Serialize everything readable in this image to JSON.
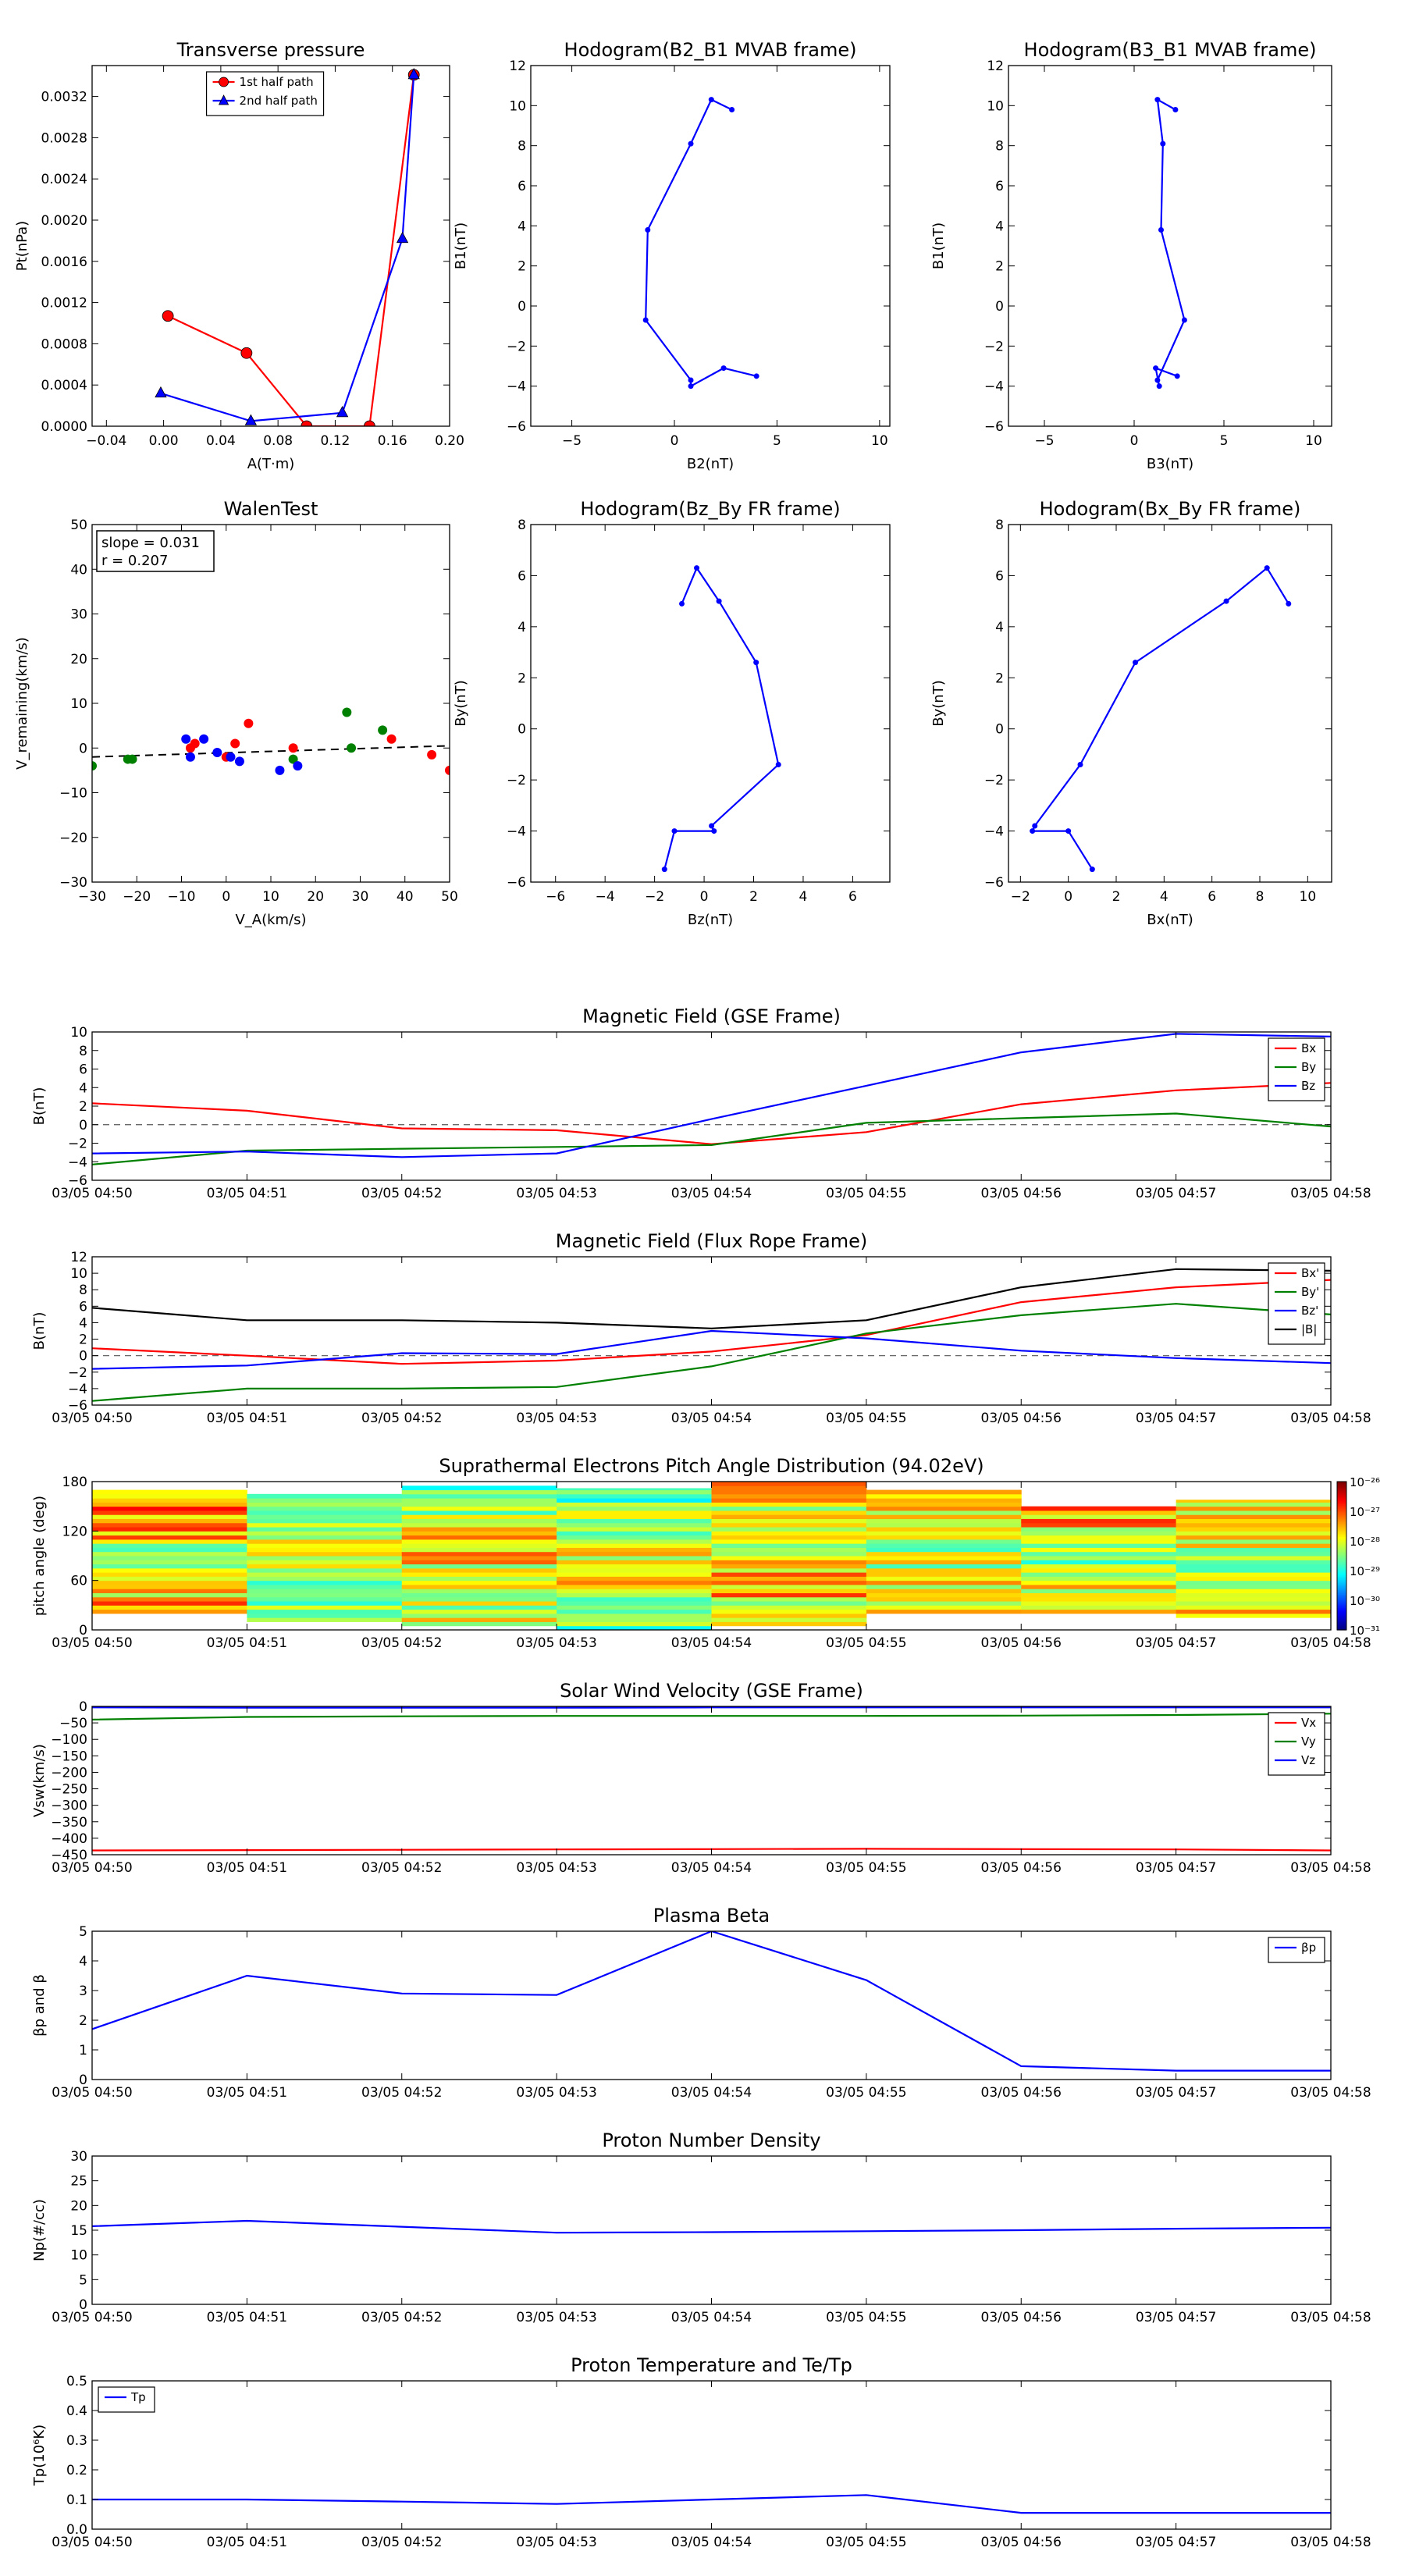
{
  "chart_data": [
    {
      "id": "transverse_pressure",
      "type": "line",
      "title": "Transverse pressure",
      "xlabel": "A(T·m)",
      "ylabel": "Pt(nPa)",
      "xlim": [
        -0.05,
        0.2
      ],
      "ylim": [
        0,
        0.0035
      ],
      "xticks": [
        -0.04,
        0,
        0.04,
        0.08,
        0.12,
        0.16,
        0.2
      ],
      "xtick_labels": [
        "−0.04",
        "0.00",
        "0.04",
        "0.08",
        "0.12",
        "0.16",
        "0.20"
      ],
      "yticks": [
        0,
        0.0004,
        0.0008,
        0.0012,
        0.0016,
        0.002,
        0.0024,
        0.0028,
        0.0032
      ],
      "ytick_labels": [
        "0.0000",
        "0.0004",
        "0.0008",
        "0.0012",
        "0.0016",
        "0.0020",
        "0.0024",
        "0.0028",
        "0.0032"
      ],
      "legend": "top-center",
      "series": [
        {
          "name": "1st half path",
          "color": "#ff0000",
          "marker": "circle",
          "x": [
            0.003,
            0.058,
            0.1,
            0.144,
            0.175
          ],
          "y": [
            0.00107,
            0.00071,
            0.0,
            0.0,
            0.00341
          ]
        },
        {
          "name": "2nd half path",
          "color": "#0000ff",
          "marker": "triangle",
          "x": [
            -0.002,
            0.061,
            0.125,
            0.167,
            0.175
          ],
          "y": [
            0.00032,
            5e-05,
            0.00013,
            0.00182,
            0.00341
          ]
        }
      ]
    },
    {
      "id": "hodogram_b2_b1",
      "type": "line",
      "title": "Hodogram(B2_B1 MVAB frame)",
      "xlabel": "B2(nT)",
      "ylabel": "B1(nT)",
      "xlim": [
        -7,
        10.5
      ],
      "ylim": [
        -6,
        12
      ],
      "xticks": [
        -5,
        0,
        5,
        10
      ],
      "yticks": [
        -6,
        -4,
        -2,
        0,
        2,
        4,
        6,
        8,
        10,
        12
      ],
      "series": [
        {
          "color": "#0000ff",
          "marker": "dot",
          "x": [
            2.8,
            1.8,
            0.8,
            -1.3,
            -1.4,
            0.8,
            0.8,
            2.4,
            4.0
          ],
          "y": [
            9.8,
            10.3,
            8.1,
            3.8,
            -0.7,
            -3.7,
            -4.0,
            -3.1,
            -3.5
          ]
        }
      ]
    },
    {
      "id": "hodogram_b3_b1",
      "type": "line",
      "title": "Hodogram(B3_B1 MVAB frame)",
      "xlabel": "B3(nT)",
      "ylabel": "B1(nT)",
      "xlim": [
        -7,
        11
      ],
      "ylim": [
        -6,
        12
      ],
      "xticks": [
        -5,
        0,
        5,
        10
      ],
      "yticks": [
        -6,
        -4,
        -2,
        0,
        2,
        4,
        6,
        8,
        10,
        12
      ],
      "series": [
        {
          "color": "#0000ff",
          "marker": "dot",
          "x": [
            2.3,
            1.3,
            1.6,
            1.5,
            2.8,
            1.3,
            1.4,
            1.2,
            2.4
          ],
          "y": [
            9.8,
            10.3,
            8.1,
            3.8,
            -0.7,
            -3.7,
            -4.0,
            -3.1,
            -3.5
          ]
        }
      ]
    },
    {
      "id": "walen_test",
      "type": "scatter",
      "title": "WalenTest",
      "xlabel": "V_A(km/s)",
      "ylabel": "V_remaining(km/s)",
      "xlim": [
        -30,
        50
      ],
      "ylim": [
        -30,
        50
      ],
      "xticks": [
        -30,
        -20,
        -10,
        0,
        10,
        20,
        30,
        40,
        50
      ],
      "yticks": [
        -30,
        -20,
        -10,
        0,
        10,
        20,
        30,
        40,
        50
      ],
      "annotation": {
        "slope": "slope = 0.031",
        "r": "r = 0.207"
      },
      "fit_line": {
        "x": [
          -30,
          50
        ],
        "y": [
          -2.0,
          0.5
        ],
        "color": "#000000",
        "style": "dashed"
      },
      "series": [
        {
          "color": "#ff0000",
          "x": [
            -8,
            -7,
            0,
            2,
            5,
            15,
            37,
            46,
            50
          ],
          "y": [
            0,
            1,
            -2,
            1,
            5.5,
            0,
            2,
            -1.5,
            -5
          ]
        },
        {
          "color": "#008000",
          "x": [
            -30,
            -22,
            -21,
            15,
            27,
            28,
            35
          ],
          "y": [
            -4,
            -2.5,
            -2.5,
            -2.5,
            8,
            0,
            4
          ]
        },
        {
          "color": "#0000ff",
          "x": [
            -9,
            -8,
            -5,
            -2,
            1,
            3,
            12,
            16
          ],
          "y": [
            2,
            -2,
            2,
            -1,
            -2,
            -3,
            -5,
            -4
          ]
        }
      ]
    },
    {
      "id": "hodogram_bz_by",
      "type": "line",
      "title": "Hodogram(Bz_By FR frame)",
      "xlabel": "Bz(nT)",
      "ylabel": "By(nT)",
      "xlim": [
        -7,
        7.5
      ],
      "ylim": [
        -6,
        8
      ],
      "xticks": [
        -6,
        -4,
        -2,
        0,
        2,
        4,
        6
      ],
      "yticks": [
        -6,
        -4,
        -2,
        0,
        2,
        4,
        6,
        8
      ],
      "series": [
        {
          "color": "#0000ff",
          "marker": "dot",
          "x": [
            -0.9,
            -0.3,
            0.6,
            2.1,
            3.0,
            0.3,
            0.4,
            -1.2,
            -1.6
          ],
          "y": [
            4.9,
            6.3,
            5.0,
            2.6,
            -1.4,
            -3.8,
            -4.0,
            -4.0,
            -5.5
          ]
        }
      ]
    },
    {
      "id": "hodogram_bx_by",
      "type": "line",
      "title": "Hodogram(Bx_By FR frame)",
      "xlabel": "Bx(nT)",
      "ylabel": "By(nT)",
      "xlim": [
        -2.5,
        11
      ],
      "ylim": [
        -6,
        8
      ],
      "xticks": [
        -2,
        0,
        2,
        4,
        6,
        8,
        10
      ],
      "yticks": [
        -6,
        -4,
        -2,
        0,
        2,
        4,
        6,
        8
      ],
      "series": [
        {
          "color": "#0000ff",
          "marker": "dot",
          "x": [
            9.2,
            8.3,
            6.6,
            2.8,
            0.5,
            -1.4,
            -1.5,
            0.0,
            1.0
          ],
          "y": [
            4.9,
            6.3,
            5.0,
            2.6,
            -1.4,
            -3.8,
            -4.0,
            -4.0,
            -5.5
          ]
        }
      ]
    },
    {
      "id": "magnetic_field_gse",
      "type": "line",
      "title": "Magnetic Field (GSE Frame)",
      "ylabel": "B(nT)",
      "xlim": [
        0,
        8
      ],
      "ylim": [
        -6,
        10
      ],
      "x_categories": [
        "03/05 04:50",
        "03/05 04:51",
        "03/05 04:52",
        "03/05 04:53",
        "03/05 04:54",
        "03/05 04:55",
        "03/05 04:56",
        "03/05 04:57",
        "03/05 04:58"
      ],
      "yticks": [
        -6,
        -4,
        -2,
        0,
        2,
        4,
        6,
        8,
        10
      ],
      "zero_line": true,
      "legend": "top-right",
      "series": [
        {
          "name": "Bx",
          "color": "#ff0000",
          "x": [
            0,
            1,
            2,
            3,
            4,
            5,
            6,
            7,
            8
          ],
          "y": [
            2.3,
            1.5,
            -0.4,
            -0.6,
            -2.1,
            -0.8,
            2.2,
            3.7,
            4.5
          ]
        },
        {
          "name": "By",
          "color": "#008000",
          "x": [
            0,
            1,
            2,
            3,
            4,
            5,
            6,
            7,
            8
          ],
          "y": [
            -4.3,
            -2.8,
            -2.6,
            -2.4,
            -2.2,
            0.2,
            0.7,
            1.2,
            -0.2
          ]
        },
        {
          "name": "Bz",
          "color": "#0000ff",
          "x": [
            0,
            1,
            2,
            3,
            4,
            5,
            6,
            7,
            8
          ],
          "y": [
            -3.1,
            -2.9,
            -3.5,
            -3.1,
            0.6,
            4.2,
            7.8,
            9.8,
            9.5
          ]
        }
      ]
    },
    {
      "id": "magnetic_field_fr",
      "type": "line",
      "title": "Magnetic Field (Flux Rope Frame)",
      "ylabel": "B(nT)",
      "xlim": [
        0,
        8
      ],
      "ylim": [
        -6,
        12
      ],
      "x_categories": [
        "03/05 04:50",
        "03/05 04:51",
        "03/05 04:52",
        "03/05 04:53",
        "03/05 04:54",
        "03/05 04:55",
        "03/05 04:56",
        "03/05 04:57",
        "03/05 04:58"
      ],
      "yticks": [
        -6,
        -4,
        -2,
        0,
        2,
        4,
        6,
        8,
        10,
        12
      ],
      "zero_line": true,
      "legend": "top-right",
      "series": [
        {
          "name": "Bx'",
          "color": "#ff0000",
          "x": [
            0,
            1,
            2,
            3,
            4,
            5,
            6,
            7,
            8
          ],
          "y": [
            0.9,
            0.0,
            -1.0,
            -0.6,
            0.5,
            2.5,
            6.5,
            8.3,
            9.2
          ]
        },
        {
          "name": "By'",
          "color": "#008000",
          "x": [
            0,
            1,
            2,
            3,
            4,
            5,
            6,
            7,
            8
          ],
          "y": [
            -5.5,
            -4.0,
            -4.0,
            -3.8,
            -1.3,
            2.7,
            4.9,
            6.3,
            5.0
          ]
        },
        {
          "name": "Bz'",
          "color": "#0000ff",
          "x": [
            0,
            1,
            2,
            3,
            4,
            5,
            6,
            7,
            8
          ],
          "y": [
            -1.6,
            -1.2,
            0.3,
            0.2,
            3.0,
            2.1,
            0.6,
            -0.3,
            -0.9
          ]
        },
        {
          "name": "|B|",
          "color": "#000000",
          "x": [
            0,
            1,
            2,
            3,
            4,
            5,
            6,
            7,
            8
          ],
          "y": [
            5.8,
            4.3,
            4.3,
            4.0,
            3.3,
            4.3,
            8.3,
            10.5,
            10.3
          ]
        }
      ]
    },
    {
      "id": "suprathermal_pad",
      "type": "heatmap",
      "title": "Suprathermal Electrons Pitch Angle Distribution (94.02eV)",
      "ylabel": "pitch angle (deg)",
      "xlim": [
        0,
        8
      ],
      "ylim": [
        0,
        180
      ],
      "x_categories": [
        "03/05 04:50",
        "03/05 04:51",
        "03/05 04:52",
        "03/05 04:53",
        "03/05 04:54",
        "03/05 04:55",
        "03/05 04:56",
        "03/05 04:57",
        "03/05 04:58"
      ],
      "yticks": [
        0,
        60,
        120,
        180
      ],
      "colorbar": {
        "min_exp": -31,
        "max_exp": -26,
        "labels": [
          "10⁻³¹",
          "10⁻³⁰",
          "10⁻²⁹",
          "10⁻²⁸",
          "10⁻²⁷",
          "10⁻²⁶"
        ]
      },
      "columns": [
        {
          "x0": 0.0,
          "x1": 1.0,
          "top": 170,
          "bottom": 20,
          "seed": 1,
          "mean": -27.8
        },
        {
          "x0": 1.0,
          "x1": 2.0,
          "top": 165,
          "bottom": 10,
          "seed": 2,
          "mean": -28.3
        },
        {
          "x0": 2.0,
          "x1": 3.0,
          "top": 175,
          "bottom": 5,
          "seed": 3,
          "mean": -28.0
        },
        {
          "x0": 3.0,
          "x1": 4.0,
          "top": 172,
          "bottom": 0,
          "seed": 4,
          "mean": -28.1
        },
        {
          "x0": 4.0,
          "x1": 5.0,
          "top": 180,
          "bottom": 5,
          "seed": 5,
          "mean": -27.9
        },
        {
          "x0": 5.0,
          "x1": 6.0,
          "top": 170,
          "bottom": 20,
          "seed": 6,
          "mean": -28.0
        },
        {
          "x0": 6.0,
          "x1": 7.0,
          "top": 150,
          "bottom": 20,
          "seed": 7,
          "mean": -27.9
        },
        {
          "x0": 7.0,
          "x1": 8.0,
          "top": 158,
          "bottom": 15,
          "seed": 8,
          "mean": -28.0
        }
      ]
    },
    {
      "id": "solar_wind_velocity",
      "type": "line",
      "title": "Solar Wind Velocity (GSE Frame)",
      "ylabel": "Vsw(km/s)",
      "xlim": [
        0,
        8
      ],
      "ylim": [
        -450,
        0
      ],
      "x_categories": [
        "03/05 04:50",
        "03/05 04:51",
        "03/05 04:52",
        "03/05 04:53",
        "03/05 04:54",
        "03/05 04:55",
        "03/05 04:56",
        "03/05 04:57",
        "03/05 04:58"
      ],
      "yticks": [
        -450,
        -400,
        -350,
        -300,
        -250,
        -200,
        -150,
        -100,
        -50,
        0
      ],
      "legend": "top-right",
      "series": [
        {
          "name": "Vx",
          "color": "#ff0000",
          "x": [
            0,
            1,
            2,
            3,
            4,
            5,
            6,
            7,
            8
          ],
          "y": [
            -437,
            -436,
            -435,
            -434,
            -433,
            -432,
            -433,
            -434,
            -437
          ]
        },
        {
          "name": "Vy",
          "color": "#008000",
          "x": [
            0,
            1,
            2,
            3,
            4,
            5,
            6,
            7,
            8
          ],
          "y": [
            -40,
            -32,
            -30,
            -29,
            -29,
            -29,
            -28,
            -26,
            -22
          ]
        },
        {
          "name": "Vz",
          "color": "#0000ff",
          "x": [
            0,
            1,
            2,
            3,
            4,
            5,
            6,
            7,
            8
          ],
          "y": [
            -3,
            -4,
            -4,
            -4,
            -3,
            -3,
            -3,
            -3,
            -3
          ]
        }
      ]
    },
    {
      "id": "plasma_beta",
      "type": "line",
      "title": "Plasma Beta",
      "ylabel": "βp and β",
      "xlim": [
        0,
        8
      ],
      "ylim": [
        0,
        5
      ],
      "x_categories": [
        "03/05 04:50",
        "03/05 04:51",
        "03/05 04:52",
        "03/05 04:53",
        "03/05 04:54",
        "03/05 04:55",
        "03/05 04:56",
        "03/05 04:57",
        "03/05 04:58"
      ],
      "yticks": [
        0,
        1,
        2,
        3,
        4,
        5
      ],
      "legend": "top-right",
      "series": [
        {
          "name": "βp",
          "color": "#0000ff",
          "x": [
            0,
            1,
            2,
            3,
            4,
            5,
            6,
            7,
            8
          ],
          "y": [
            1.7,
            3.5,
            2.9,
            2.85,
            5.0,
            3.35,
            0.45,
            0.3,
            0.3
          ]
        }
      ]
    },
    {
      "id": "proton_density",
      "type": "line",
      "title": "Proton Number Density",
      "ylabel": "Np(#/cc)",
      "xlim": [
        0,
        8
      ],
      "ylim": [
        0,
        30
      ],
      "x_categories": [
        "03/05 04:50",
        "03/05 04:51",
        "03/05 04:52",
        "03/05 04:53",
        "03/05 04:54",
        "03/05 04:55",
        "03/05 04:56",
        "03/05 04:57",
        "03/05 04:58"
      ],
      "yticks": [
        0,
        5,
        10,
        15,
        20,
        25,
        30
      ],
      "series": [
        {
          "color": "#0000ff",
          "x": [
            0,
            1,
            2,
            3,
            4,
            5,
            6,
            7,
            8
          ],
          "y": [
            15.8,
            16.9,
            15.7,
            14.5,
            14.6,
            14.8,
            15.0,
            15.3,
            15.5
          ]
        }
      ]
    },
    {
      "id": "proton_temperature",
      "type": "line",
      "title": "Proton Temperature and Te/Tp",
      "ylabel": "Tp(10⁶K)",
      "xlim": [
        0,
        8
      ],
      "ylim": [
        0,
        0.5
      ],
      "x_categories": [
        "03/05 04:50",
        "03/05 04:51",
        "03/05 04:52",
        "03/05 04:53",
        "03/05 04:54",
        "03/05 04:55",
        "03/05 04:56",
        "03/05 04:57",
        "03/05 04:58"
      ],
      "yticks": [
        0,
        0.1,
        0.2,
        0.3,
        0.4,
        0.5
      ],
      "ytick_labels": [
        "0.0",
        "0.1",
        "0.2",
        "0.3",
        "0.4",
        "0.5"
      ],
      "legend": "top-left",
      "series": [
        {
          "name": "Tp",
          "color": "#0000ff",
          "x": [
            0,
            1,
            2,
            3,
            4,
            5,
            6,
            7,
            8
          ],
          "y": [
            0.1,
            0.1,
            0.093,
            0.085,
            0.1,
            0.115,
            0.055,
            0.055,
            0.055
          ]
        }
      ]
    }
  ]
}
